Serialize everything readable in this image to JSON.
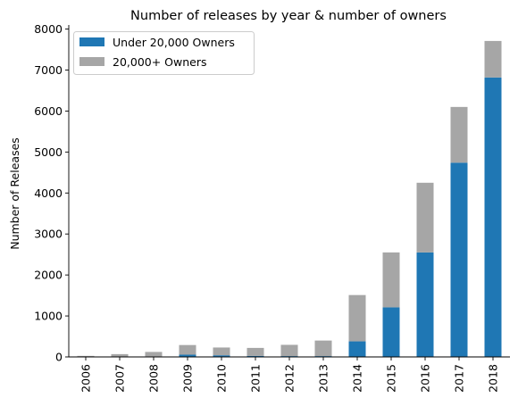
{
  "chart_data": {
    "type": "bar",
    "stacked": true,
    "title": "Number of releases by year & number of owners",
    "xlabel": "",
    "ylabel": "Number of Releases",
    "categories": [
      "2006",
      "2007",
      "2008",
      "2009",
      "2010",
      "2011",
      "2012",
      "2013",
      "2014",
      "2015",
      "2016",
      "2017",
      "2018"
    ],
    "series": [
      {
        "name": "Under 20,000 Owners",
        "color": "#1f77b4",
        "values": [
          5,
          8,
          12,
          55,
          40,
          25,
          20,
          20,
          380,
          1210,
          2550,
          4740,
          6820
        ]
      },
      {
        "name": "20,000+ Owners",
        "color": "#a6a6a6",
        "values": [
          20,
          60,
          110,
          235,
          190,
          195,
          275,
          380,
          1130,
          1340,
          1700,
          1360,
          890
        ]
      }
    ],
    "ylim": [
      0,
      8100
    ],
    "yticks": [
      0,
      1000,
      2000,
      3000,
      4000,
      5000,
      6000,
      7000,
      8000
    ],
    "grid": false,
    "legend": "top-left"
  }
}
